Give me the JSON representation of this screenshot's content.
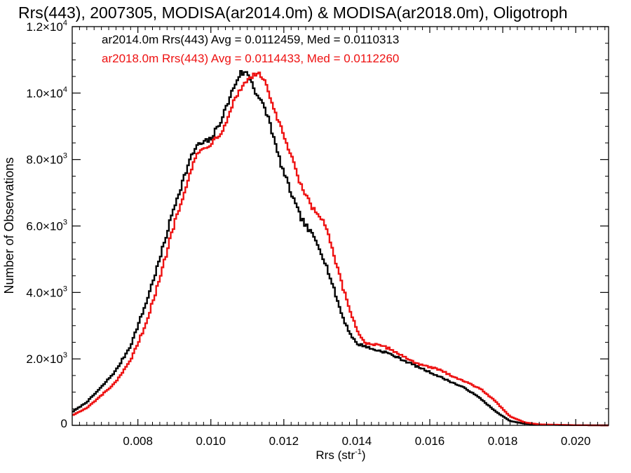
{
  "chart_data": {
    "type": "line",
    "title": "Rrs(443), 2007305, MODISA(ar2014.0m) & MODISA(ar2018.0m), Oligotroph",
    "xlabel": "Rrs (str",
    "xlabel_sup": "-1",
    "xlabel_suffix": ")",
    "ylabel": "Number of Observations",
    "xlim": [
      0.0062,
      0.0209
    ],
    "ylim": [
      0,
      12000
    ],
    "x_ticks": [
      {
        "value": 0.008,
        "label": "0.008"
      },
      {
        "value": 0.01,
        "label": "0.010"
      },
      {
        "value": 0.012,
        "label": "0.012"
      },
      {
        "value": 0.014,
        "label": "0.014"
      },
      {
        "value": 0.016,
        "label": "0.016"
      },
      {
        "value": 0.018,
        "label": "0.018"
      },
      {
        "value": 0.02,
        "label": "0.020"
      }
    ],
    "y_ticks": [
      {
        "value": 0,
        "mant": "0",
        "exp": ""
      },
      {
        "value": 2000,
        "mant": "2.0×10",
        "exp": "3"
      },
      {
        "value": 4000,
        "mant": "4.0×10",
        "exp": "3"
      },
      {
        "value": 6000,
        "mant": "6.0×10",
        "exp": "3"
      },
      {
        "value": 8000,
        "mant": "8.0×10",
        "exp": "3"
      },
      {
        "value": 10000,
        "mant": "1.0×10",
        "exp": "4"
      },
      {
        "value": 12000,
        "mant": "1.2×10",
        "exp": "4"
      }
    ],
    "grid": false,
    "legend_position": "top-left",
    "series": [
      {
        "name": "ar2014.0m",
        "legend_text": "ar2014.0m Rrs(443) Avg = 0.0112459, Med = 0.0110313",
        "color": "#000000",
        "x": [
          0.0062,
          0.0066,
          0.007,
          0.0074,
          0.0078,
          0.0082,
          0.0086,
          0.009,
          0.0094,
          0.0096,
          0.0098,
          0.01,
          0.0102,
          0.0104,
          0.0106,
          0.0108,
          0.011,
          0.0111,
          0.0112,
          0.0114,
          0.0116,
          0.0118,
          0.012,
          0.0122,
          0.0124,
          0.0126,
          0.0128,
          0.013,
          0.0132,
          0.0134,
          0.0136,
          0.0138,
          0.014,
          0.0142,
          0.0144,
          0.0146,
          0.0148,
          0.015,
          0.0154,
          0.0158,
          0.0162,
          0.0166,
          0.017,
          0.0174,
          0.0178,
          0.0182,
          0.0186,
          0.019,
          0.02,
          0.0209
        ],
        "values": [
          400,
          700,
          1150,
          1650,
          2400,
          3600,
          5000,
          6600,
          7900,
          8400,
          8500,
          8600,
          9000,
          9500,
          10100,
          10600,
          10600,
          10400,
          10100,
          9700,
          9200,
          8300,
          7600,
          7000,
          6400,
          6000,
          5700,
          5300,
          4700,
          4000,
          3300,
          2800,
          2450,
          2400,
          2300,
          2250,
          2200,
          2100,
          1900,
          1700,
          1500,
          1300,
          1100,
          800,
          420,
          130,
          50,
          20,
          5,
          0
        ]
      },
      {
        "name": "ar2018.0m",
        "legend_text": "ar2018.0m Rrs(443) Avg = 0.0114433, Med = 0.0112260",
        "color": "#ee1111",
        "x": [
          0.0062,
          0.0066,
          0.007,
          0.0074,
          0.0078,
          0.0082,
          0.0086,
          0.009,
          0.0094,
          0.0096,
          0.0098,
          0.01,
          0.0102,
          0.0104,
          0.0106,
          0.0108,
          0.011,
          0.0112,
          0.0114,
          0.0116,
          0.0118,
          0.012,
          0.0122,
          0.0124,
          0.0126,
          0.0128,
          0.013,
          0.0132,
          0.0134,
          0.0136,
          0.0138,
          0.014,
          0.0142,
          0.0144,
          0.0146,
          0.0148,
          0.015,
          0.0154,
          0.0158,
          0.0162,
          0.0166,
          0.017,
          0.0174,
          0.0178,
          0.0182,
          0.0186,
          0.019,
          0.02,
          0.0209
        ],
        "values": [
          300,
          520,
          900,
          1300,
          1950,
          3000,
          4400,
          6100,
          7500,
          8100,
          8350,
          8500,
          8700,
          9100,
          9700,
          10100,
          10400,
          10600,
          10500,
          10000,
          9300,
          8700,
          8100,
          7400,
          6900,
          6500,
          6300,
          5800,
          5000,
          4200,
          3500,
          2900,
          2500,
          2450,
          2400,
          2350,
          2250,
          2000,
          1800,
          1700,
          1500,
          1300,
          1100,
          720,
          270,
          90,
          30,
          5,
          0
        ]
      }
    ]
  }
}
